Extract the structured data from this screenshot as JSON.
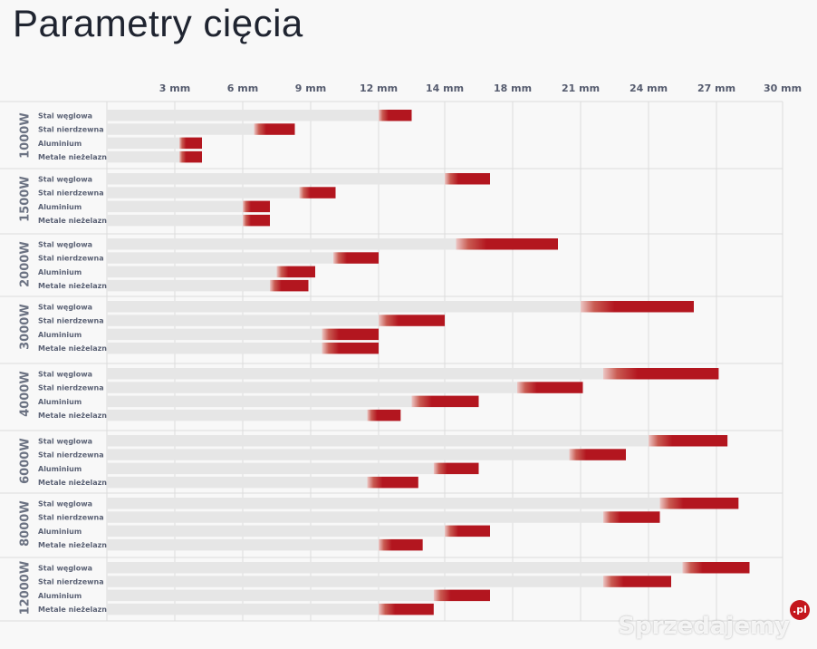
{
  "page": {
    "title": "Parametry cięcia",
    "watermark": "Sprzedajemy",
    "watermark_badge": ".pl"
  },
  "colors": {
    "accent": "#b3161f",
    "track": "#e6e6e6",
    "grid": "#dcdcdc",
    "label": "#6b7282"
  },
  "chart_data": {
    "type": "bar",
    "orientation": "horizontal-grouped",
    "title": "Parametry cięcia",
    "x_ticks": [
      "3 mm",
      "6 mm",
      "9 mm",
      "12 mm",
      "14 mm",
      "18 mm",
      "21 mm",
      "24 mm",
      "27 mm",
      "30 mm"
    ],
    "material_labels": [
      "Stal węglowa",
      "Stal nierdzewna",
      "Aluminium",
      "Metale nieżelazne"
    ],
    "groups": [
      {
        "name": "1000W",
        "materials": [
          {
            "start": 12,
            "end": 13.5
          },
          {
            "start": 6.5,
            "end": 8.3
          },
          {
            "start": 3.2,
            "end": 4.2
          },
          {
            "start": 3.2,
            "end": 4.2
          }
        ]
      },
      {
        "name": "1500W",
        "materials": [
          {
            "start": 15,
            "end": 17
          },
          {
            "start": 8.5,
            "end": 10.1
          },
          {
            "start": 6,
            "end": 7.2
          },
          {
            "start": 6,
            "end": 7.2
          }
        ]
      },
      {
        "name": "2000W",
        "materials": [
          {
            "start": 15.5,
            "end": 20
          },
          {
            "start": 10,
            "end": 12
          },
          {
            "start": 7.5,
            "end": 9.2
          },
          {
            "start": 7.2,
            "end": 8.9
          }
        ]
      },
      {
        "name": "3000W",
        "materials": [
          {
            "start": 21,
            "end": 26
          },
          {
            "start": 12,
            "end": 15
          },
          {
            "start": 9.5,
            "end": 12
          },
          {
            "start": 9.5,
            "end": 12
          }
        ]
      },
      {
        "name": "4000W",
        "materials": [
          {
            "start": 22,
            "end": 27.1
          },
          {
            "start": 18.2,
            "end": 21.1
          },
          {
            "start": 13.5,
            "end": 16.5
          },
          {
            "start": 11.5,
            "end": 13
          }
        ]
      },
      {
        "name": "6000W",
        "materials": [
          {
            "start": 24,
            "end": 27.5
          },
          {
            "start": 20.5,
            "end": 23
          },
          {
            "start": 14.5,
            "end": 16.5
          },
          {
            "start": 11.5,
            "end": 13.8
          }
        ]
      },
      {
        "name": "8000W",
        "materials": [
          {
            "start": 24.5,
            "end": 28
          },
          {
            "start": 22,
            "end": 24.5
          },
          {
            "start": 15,
            "end": 17
          },
          {
            "start": 12,
            "end": 14
          }
        ]
      },
      {
        "name": "12000W",
        "materials": [
          {
            "start": 25.5,
            "end": 28.5
          },
          {
            "start": 22,
            "end": 25
          },
          {
            "start": 14.5,
            "end": 17
          },
          {
            "start": 12,
            "end": 14.5
          }
        ]
      }
    ]
  }
}
